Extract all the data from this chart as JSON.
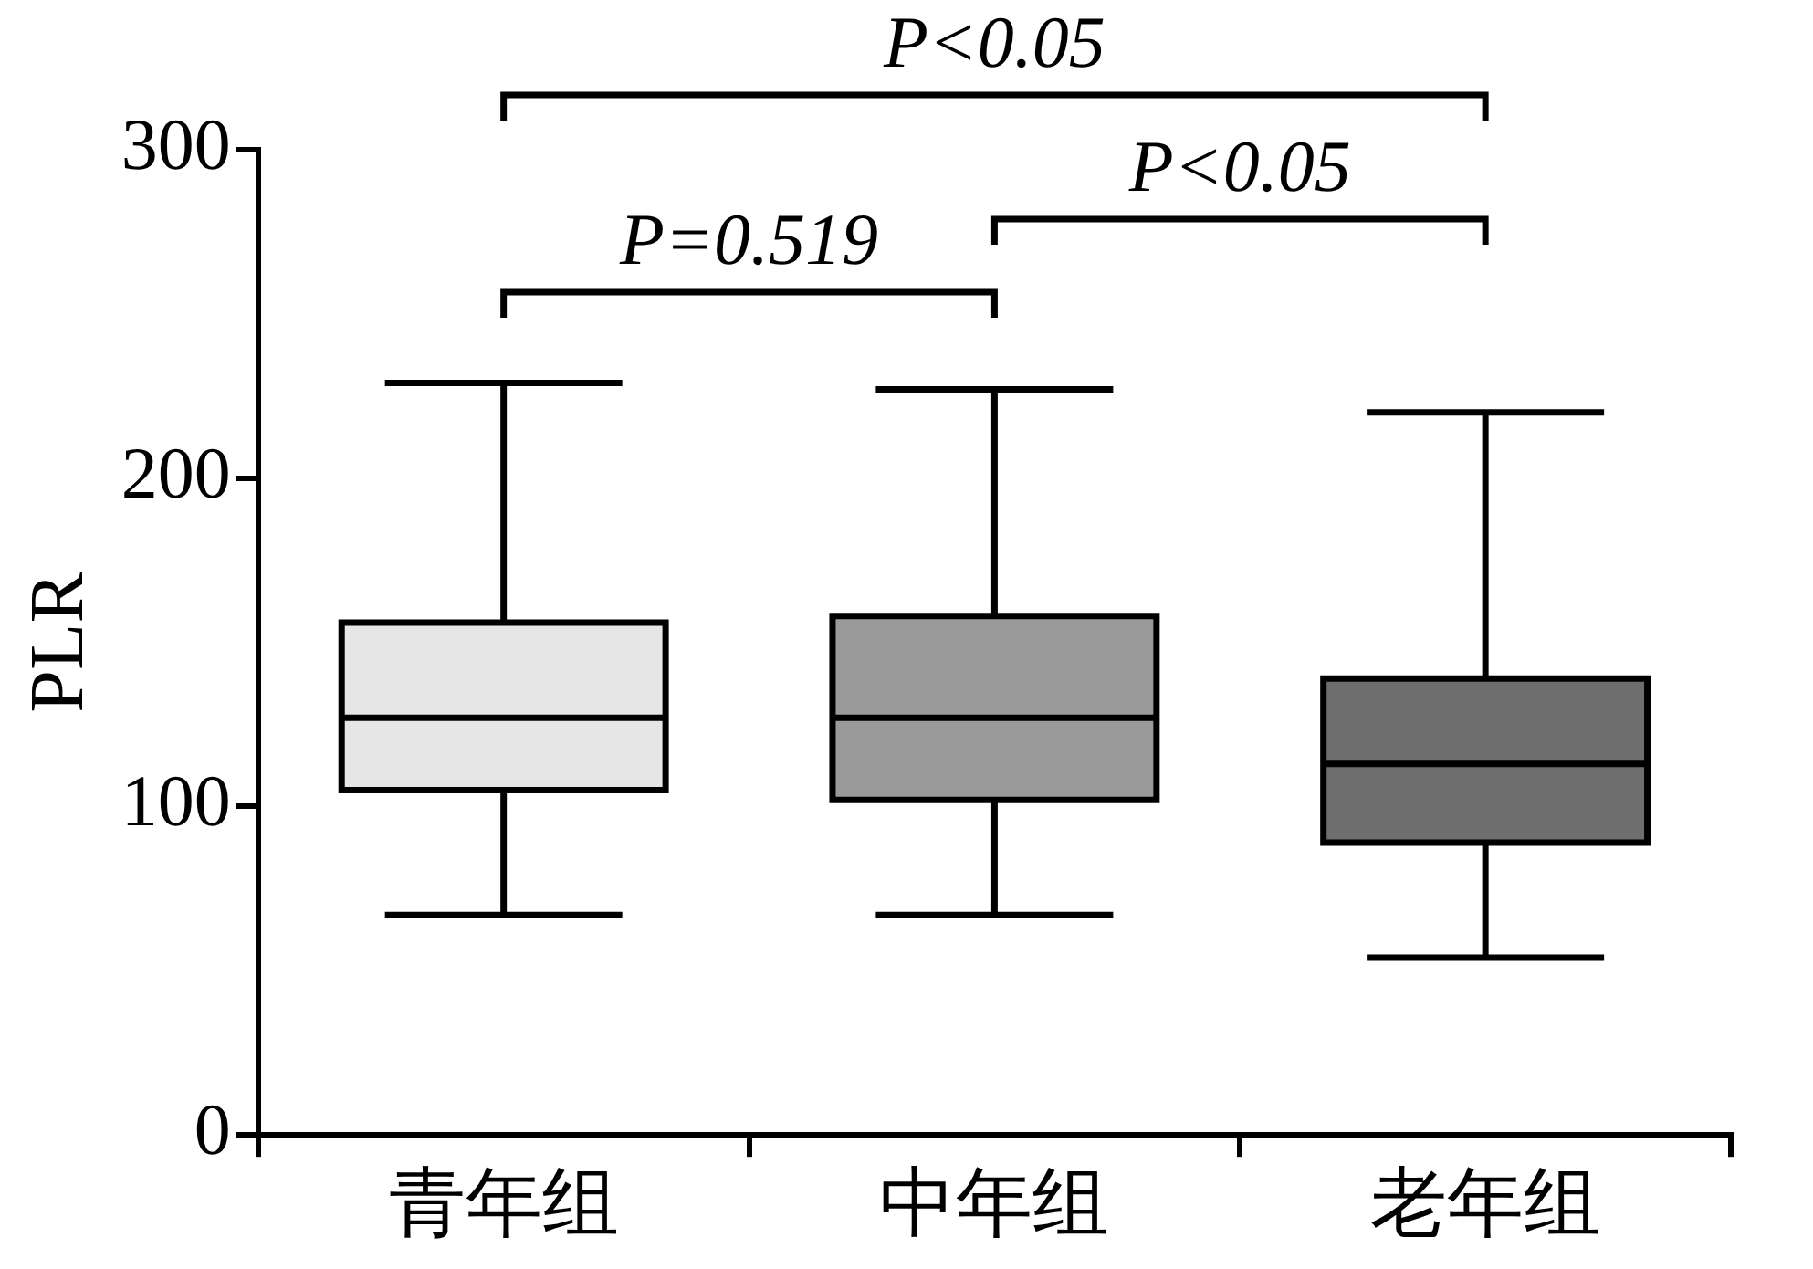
{
  "chart_data": {
    "type": "box",
    "ylabel": "PLR",
    "categories": [
      "青年组",
      "中年组",
      "老年组"
    ],
    "colors": [
      "#e6e6e6",
      "#9a9a9a",
      "#6e6e6e"
    ],
    "boxes": [
      {
        "low": 67,
        "q1": 105,
        "median": 127,
        "q3": 156,
        "high": 229
      },
      {
        "low": 67,
        "q1": 102,
        "median": 127,
        "q3": 158,
        "high": 227
      },
      {
        "low": 54,
        "q1": 89,
        "median": 113,
        "q3": 139,
        "high": 220
      }
    ],
    "ylim": [
      0,
      300
    ],
    "yticks": [
      0,
      100,
      200,
      300
    ],
    "grid": false,
    "legend": false,
    "annotations": [
      "P<0.05",
      "P=0.519",
      "P<0.05"
    ]
  }
}
